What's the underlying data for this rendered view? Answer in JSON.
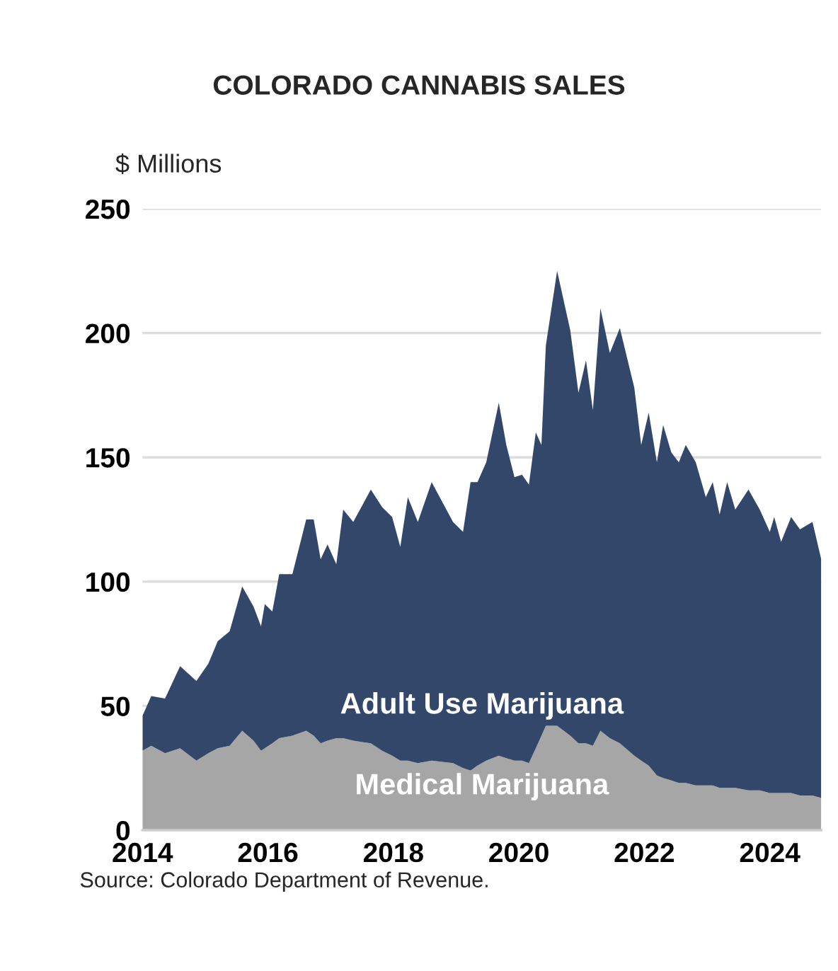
{
  "chart_data": {
    "type": "area",
    "stacked": true,
    "title": "COLORADO CANNABIS SALES",
    "ylabel": "$ Millions",
    "x": [
      2014.0,
      2014.14,
      2014.36,
      2014.6,
      2014.86,
      2015.05,
      2015.2,
      2015.39,
      2015.59,
      2015.77,
      2015.89,
      2015.95,
      2016.07,
      2016.18,
      2016.39,
      2016.61,
      2016.73,
      2016.84,
      2016.95,
      2017.09,
      2017.2,
      2017.36,
      2017.64,
      2017.82,
      2017.98,
      2018.11,
      2018.23,
      2018.39,
      2018.61,
      2018.95,
      2019.11,
      2019.23,
      2019.34,
      2019.48,
      2019.68,
      2019.8,
      2019.93,
      2020.05,
      2020.16,
      2020.27,
      2020.36,
      2020.43,
      2020.61,
      2020.82,
      2020.95,
      2021.07,
      2021.18,
      2021.3,
      2021.45,
      2021.61,
      2021.84,
      2021.95,
      2022.07,
      2022.2,
      2022.3,
      2022.43,
      2022.55,
      2022.66,
      2022.82,
      2022.98,
      2023.09,
      2023.2,
      2023.32,
      2023.45,
      2023.66,
      2023.84,
      2024.0,
      2024.07,
      2024.18,
      2024.34,
      2024.48,
      2024.68,
      2024.82
    ],
    "series": [
      {
        "name": "Medical Marijuana",
        "color": "#a6a6a6",
        "values": [
          32,
          34,
          31,
          33,
          28,
          31,
          33,
          34,
          40,
          36,
          32,
          33,
          35,
          37,
          38,
          40,
          38,
          35,
          36,
          37,
          37,
          36,
          35,
          32,
          30,
          28,
          28,
          27,
          28,
          27,
          25,
          24,
          26,
          28,
          30,
          29,
          28,
          28,
          27,
          33,
          38,
          42,
          42,
          38,
          35,
          35,
          34,
          40,
          37,
          35,
          30,
          28,
          26,
          22,
          21,
          20,
          19,
          19,
          18,
          18,
          18,
          17,
          17,
          17,
          16,
          16,
          15,
          15,
          15,
          15,
          14,
          14,
          13
        ]
      },
      {
        "name": "Adult Use Marijuana",
        "color": "#33476a",
        "values": [
          14,
          20,
          22,
          33,
          32,
          36,
          43,
          46,
          58,
          54,
          50,
          58,
          53,
          66,
          65,
          85,
          87,
          74,
          79,
          70,
          92,
          88,
          102,
          98,
          96,
          86,
          106,
          97,
          112,
          97,
          95,
          116,
          114,
          120,
          142,
          126,
          114,
          115,
          112,
          127,
          117,
          153,
          183,
          163,
          141,
          154,
          135,
          170,
          155,
          167,
          148,
          127,
          142,
          126,
          142,
          132,
          129,
          136,
          130,
          116,
          122,
          110,
          123,
          112,
          121,
          113,
          105,
          111,
          101,
          111,
          107,
          110,
          96
        ]
      }
    ],
    "xlim": [
      2014.0,
      2024.82
    ],
    "xticks": [
      2014,
      2016,
      2018,
      2020,
      2022,
      2024
    ],
    "ylim": [
      0,
      250
    ],
    "yticks": [
      0,
      50,
      100,
      150,
      200,
      250
    ],
    "grid": "y",
    "legend": false,
    "annotations": [
      "Source: Colorado Department of Revenue."
    ]
  }
}
